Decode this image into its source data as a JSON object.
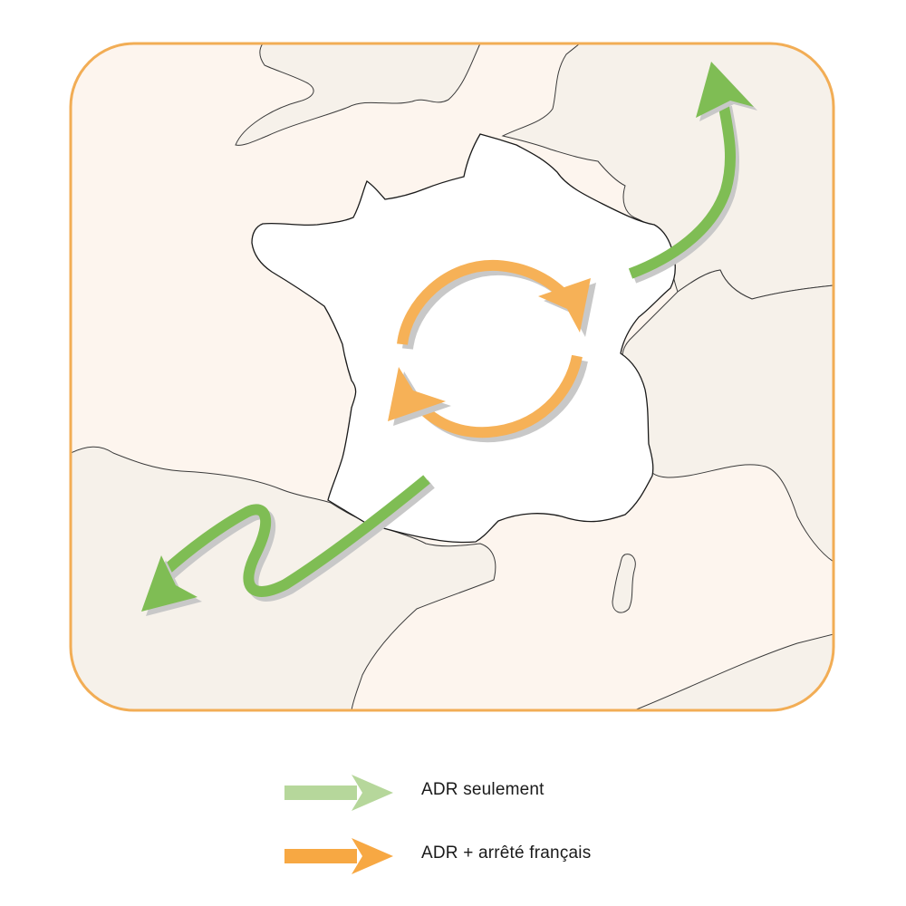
{
  "map": {
    "region": "France",
    "colors": {
      "frame_border": "#f2ad55",
      "sea": "#fdf5ee",
      "land": "#f6f1ea",
      "france": "#ffffff",
      "outline": "#3a3a3a",
      "shadow": "#c8c8c8"
    }
  },
  "legend": {
    "items": [
      {
        "label": "ADR seulement",
        "color": "#b6d79b",
        "marker": "arrow-light-green"
      },
      {
        "label": "ADR + arrêté français",
        "color": "#f7a843",
        "marker": "arrow-orange"
      }
    ]
  },
  "flows": {
    "export_color": "#7fbd54",
    "internal_color": "#f6b157"
  }
}
